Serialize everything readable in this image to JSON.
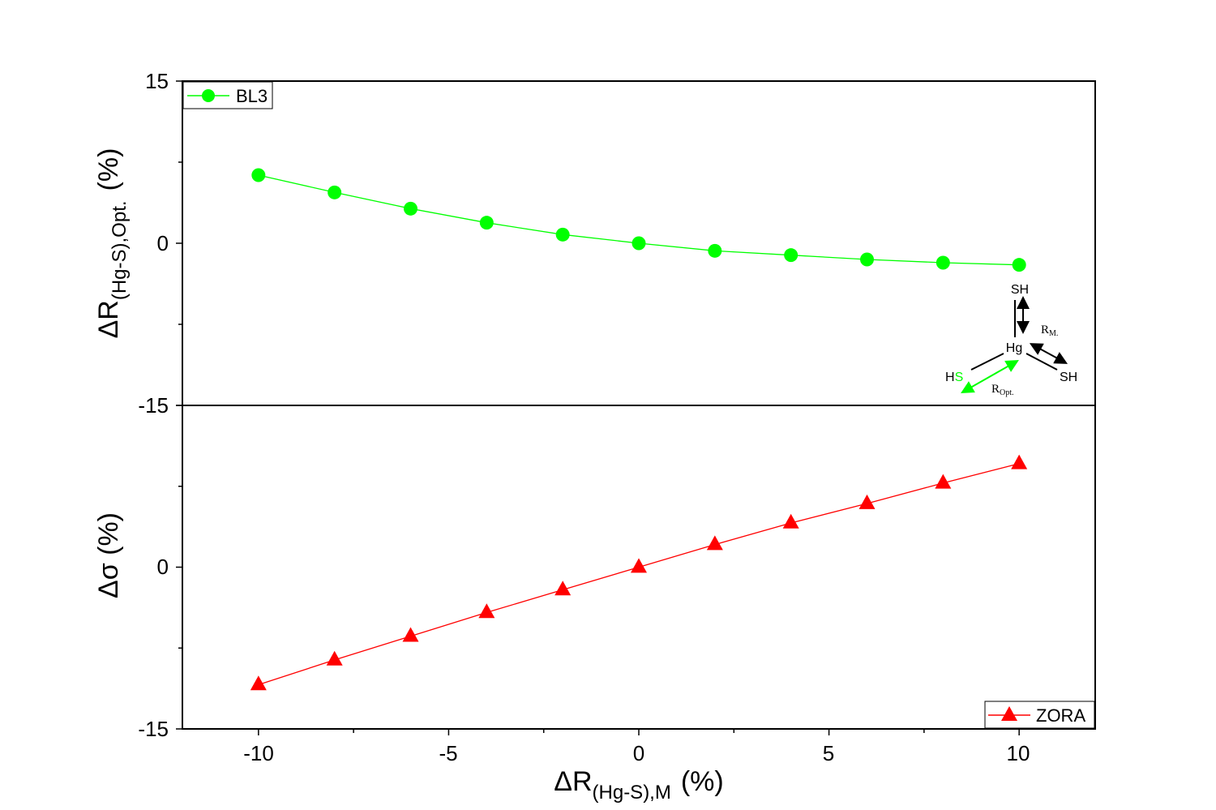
{
  "chart_data": [
    {
      "type": "line",
      "panel": "top",
      "series": [
        {
          "name": "BL3",
          "color": "#00ff00",
          "marker": "circle",
          "x": [
            -10,
            -8,
            -6,
            -4,
            -2,
            0,
            2,
            4,
            6,
            8,
            10
          ],
          "y": [
            6.3,
            4.7,
            3.2,
            1.9,
            0.8,
            0.0,
            -0.7,
            -1.1,
            -1.5,
            -1.8,
            -2.0
          ]
        }
      ],
      "ylabel_main": "ΔR",
      "ylabel_sub": "(Hg-S),Opt.",
      "ylabel_unit": "(%)",
      "ylim": [
        -15,
        15
      ],
      "yticks": [
        15,
        0,
        -15
      ],
      "ytick_labels": [
        "15",
        "0",
        "-15"
      ],
      "legend": "BL3",
      "legend_position": "top-left",
      "inset": {
        "top_atom": "SH",
        "center_atom": "Hg",
        "left_atom_h": "H",
        "left_atom_s": "S",
        "right_atom": "SH",
        "label_m_main": "R",
        "label_m_sub": "M.",
        "label_opt_main": "R",
        "label_opt_sub": "Opt.",
        "highlight_color": "#00ff00"
      }
    },
    {
      "type": "line",
      "panel": "bottom",
      "series": [
        {
          "name": "ZORA",
          "color": "#ff0000",
          "marker": "triangle",
          "x": [
            -10,
            -8,
            -6,
            -4,
            -2,
            0,
            2,
            4,
            6,
            8,
            10
          ],
          "y": [
            -10.9,
            -8.6,
            -6.4,
            -4.2,
            -2.1,
            0.0,
            2.1,
            4.1,
            5.9,
            7.8,
            9.6
          ]
        }
      ],
      "ylabel": "Δσ (%)",
      "ylim": [
        -15,
        15
      ],
      "yticks": [
        0,
        -15
      ],
      "ytick_labels": [
        "0",
        "-15"
      ],
      "legend": "ZORA",
      "legend_position": "bottom-right"
    }
  ],
  "x_axis": {
    "xlabel_main": "ΔR",
    "xlabel_sub": "(Hg-S),M",
    "xlabel_unit": "(%)",
    "xlim": [
      -12,
      12
    ],
    "xticks": [
      -10,
      -5,
      0,
      5,
      10
    ],
    "xtick_labels": [
      "-10",
      "-5",
      "0",
      "5",
      "10"
    ]
  }
}
